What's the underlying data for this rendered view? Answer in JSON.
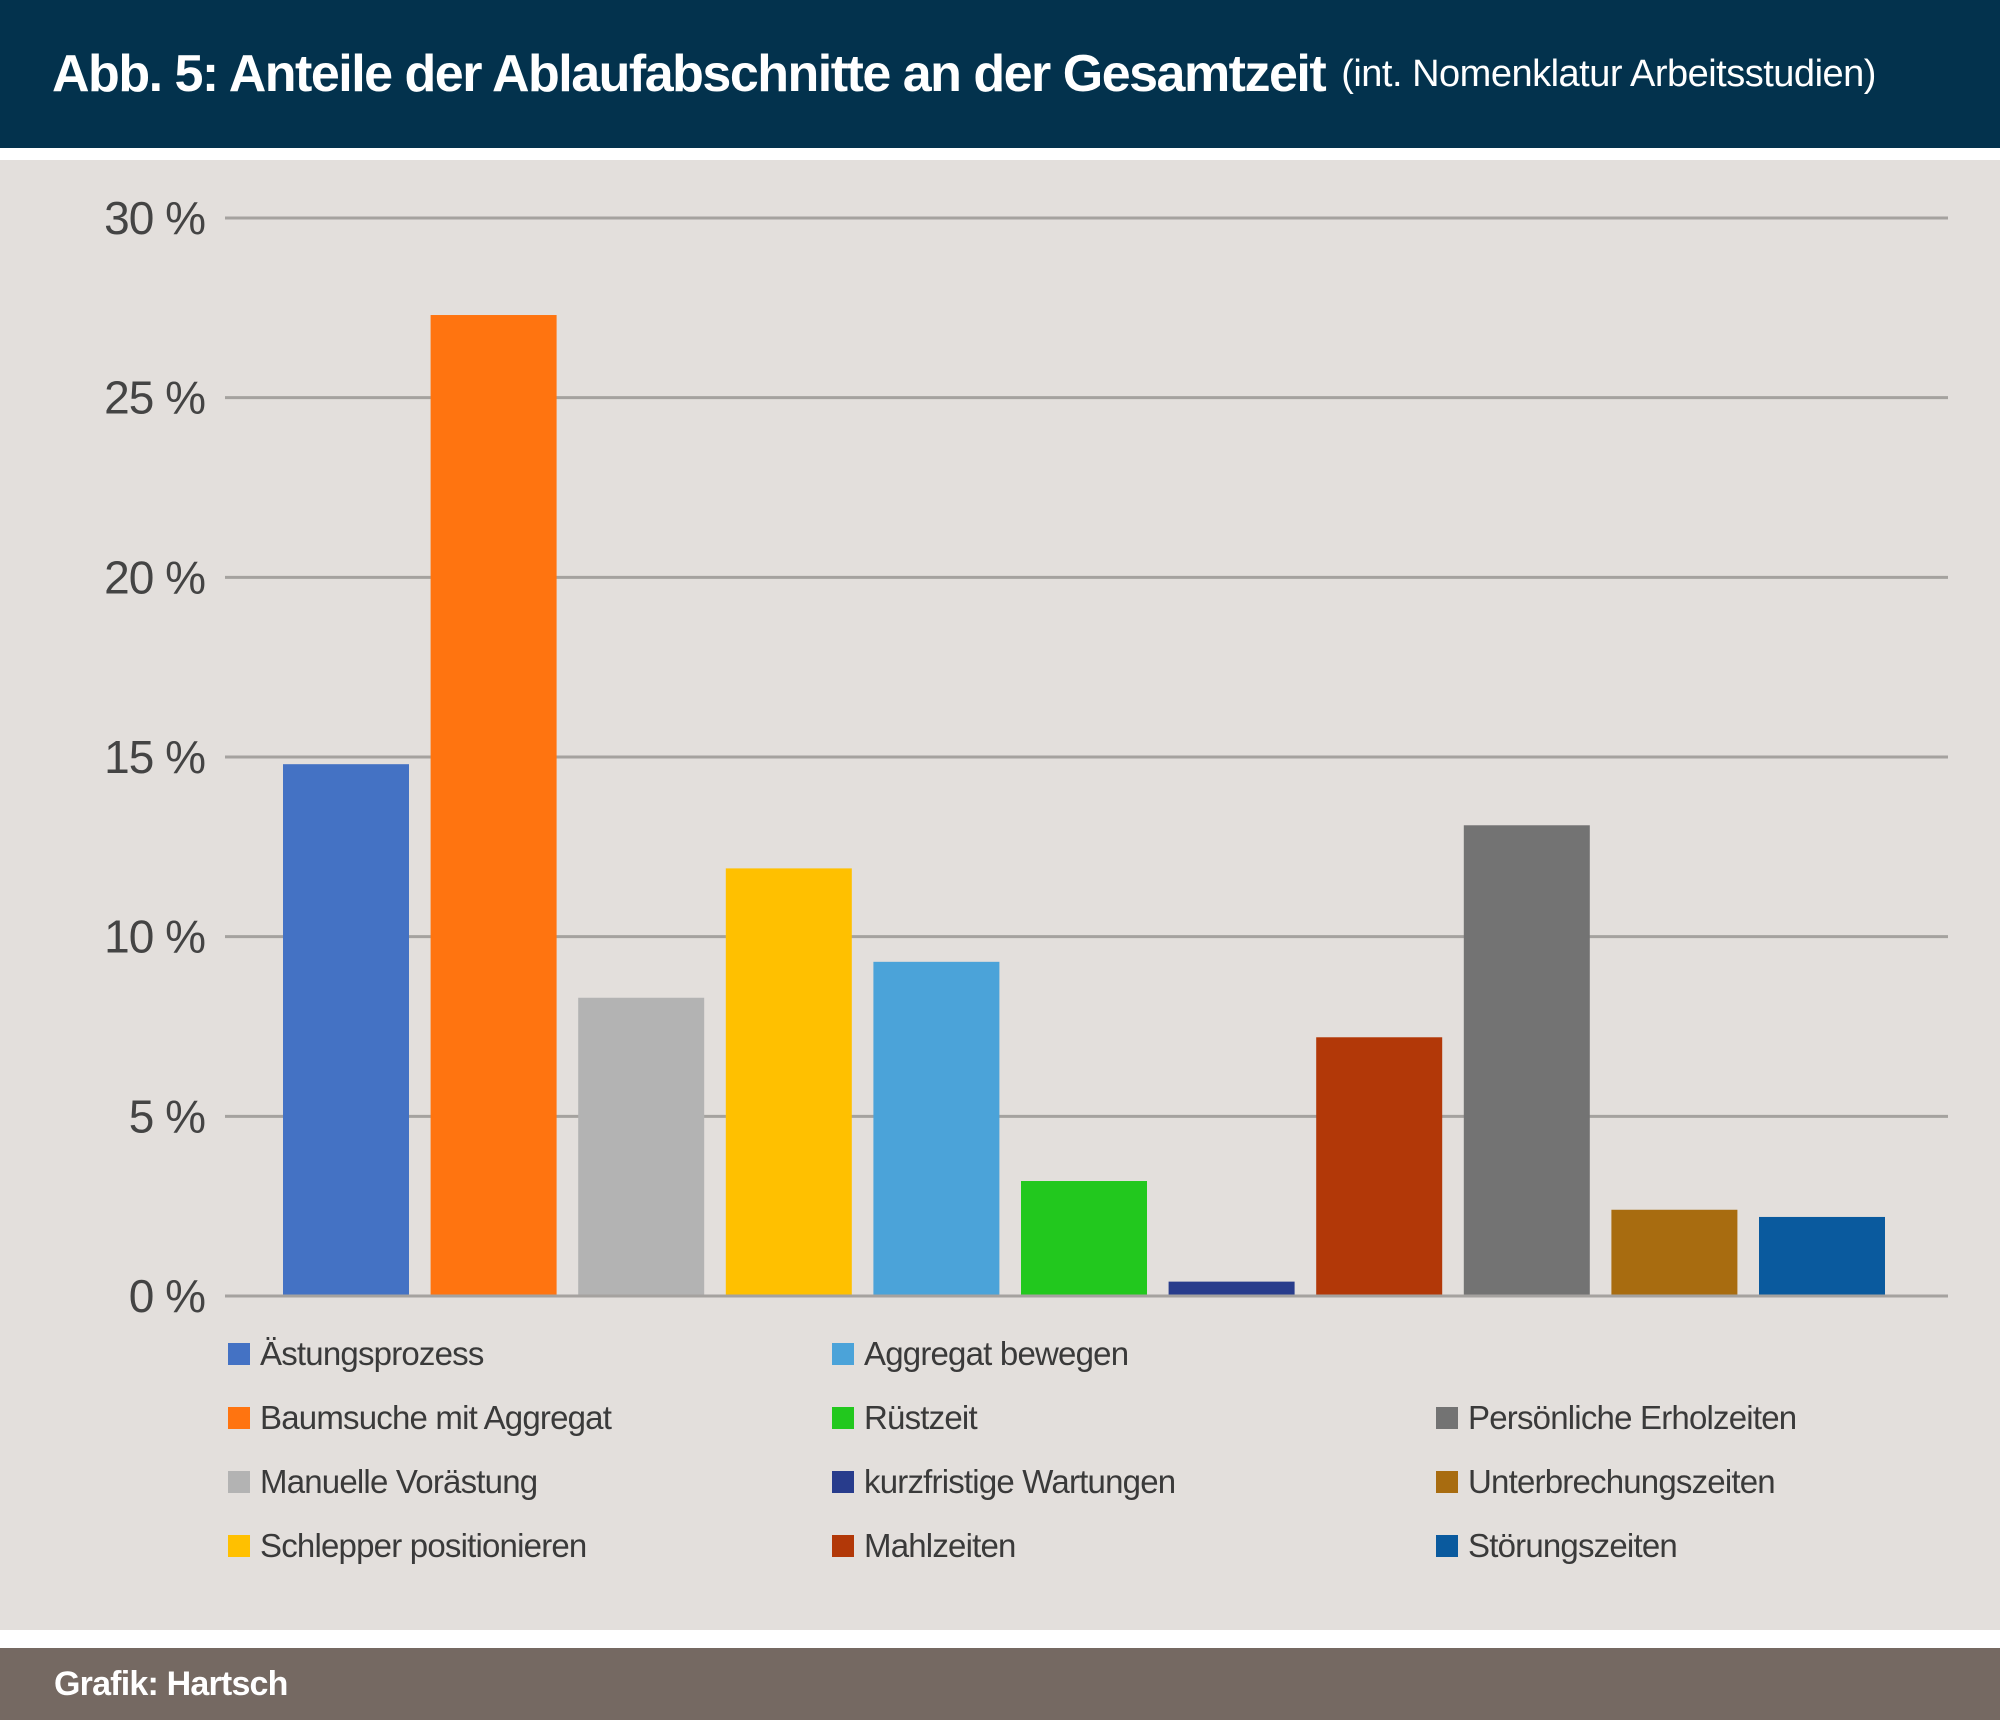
{
  "header": {
    "title": "Abb. 5: Anteile der Ablaufabschnitte an der Gesamtzeit",
    "subtitle": "(int. Nomenklatur Arbeitsstudien)"
  },
  "footer": {
    "credit": "Grafik: Hartsch"
  },
  "chart_data": {
    "type": "bar",
    "title": "Abb. 5: Anteile der Ablaufabschnitte an der Gesamtzeit",
    "subtitle": "(int. Nomenklatur Arbeitsstudien)",
    "xlabel": "",
    "ylabel": "",
    "ylim": [
      0,
      30
    ],
    "yticks": [
      0,
      5,
      10,
      15,
      20,
      25,
      30
    ],
    "ytick_labels": [
      "0 %",
      "5 %",
      "10 %",
      "15 %",
      "20 %",
      "25 %",
      "30 %"
    ],
    "grid": "horizontal",
    "legend_position": "bottom",
    "categories": [
      "Ästungsprozess",
      "Baumsuche mit Aggregat",
      "Manuelle Vorästung",
      "Schlepper positionieren",
      "Aggregat bewegen",
      "Rüstzeit",
      "kurzfristige Wartungen",
      "Mahlzeiten",
      "Persönliche Erholzeiten",
      "Unterbrechungszeiten",
      "Störungszeiten"
    ],
    "values": [
      14.8,
      27.3,
      8.3,
      11.9,
      9.3,
      3.2,
      0.4,
      7.2,
      13.1,
      2.4,
      2.2
    ],
    "colors": [
      "#4472c4",
      "#ff7410",
      "#b3b3b3",
      "#ffc000",
      "#4ba3d9",
      "#22c81e",
      "#283c8c",
      "#b23808",
      "#737373",
      "#a86c10",
      "#0a5a9e"
    ]
  }
}
